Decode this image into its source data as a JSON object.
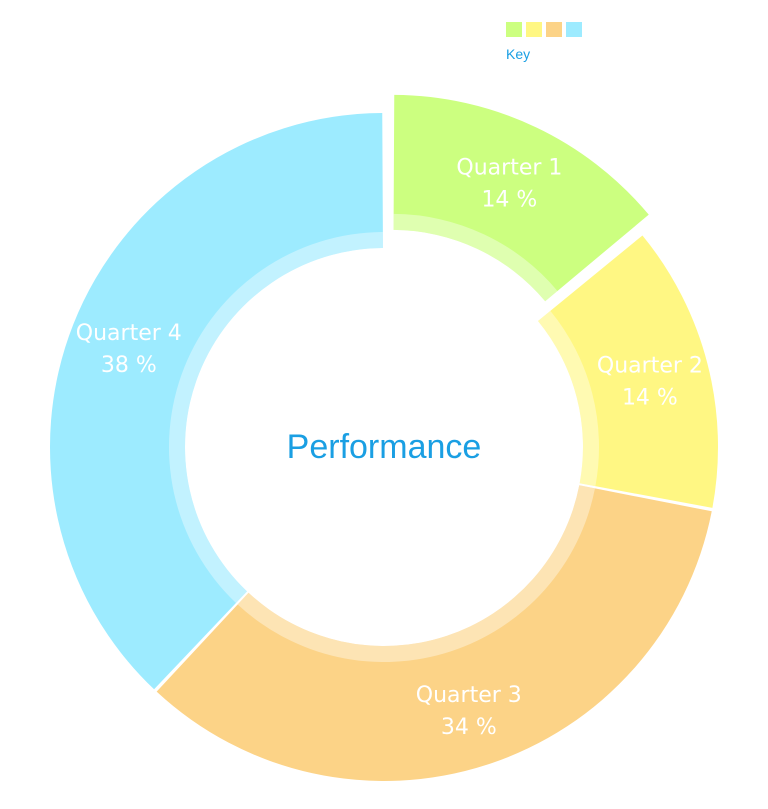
{
  "chart_data": {
    "type": "pie",
    "title": "Performance",
    "legend": {
      "title": "Key",
      "placement": "top-right"
    },
    "slices": [
      {
        "name": "Quarter 1",
        "value": 14,
        "label": "14 %",
        "color": "#ccff80",
        "exploded": true
      },
      {
        "name": "Quarter 2",
        "value": 14,
        "label": "14 %",
        "color": "#fff783",
        "exploded": false
      },
      {
        "name": "Quarter 3",
        "value": 34,
        "label": "34 %",
        "color": "#fcd387",
        "exploded": false
      },
      {
        "name": "Quarter 4",
        "value": 38,
        "label": "38 %",
        "color": "#9debff",
        "exploded": false
      }
    ]
  }
}
